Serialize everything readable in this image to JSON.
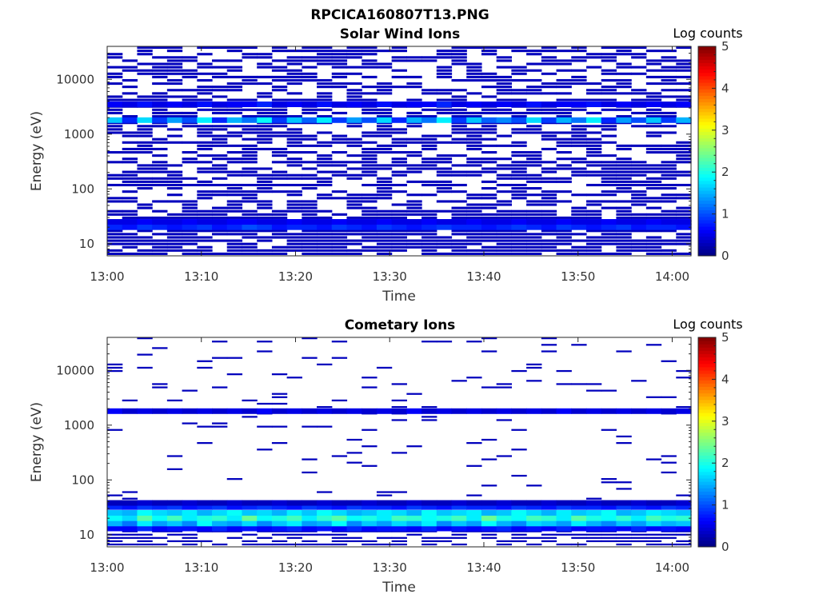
{
  "figure_title": "RPCICA160807T13.PNG",
  "chart_data": [
    {
      "type": "heatmap",
      "title": "Solar Wind Ions",
      "xlabel": "Time",
      "ylabel": "Energy (eV)",
      "x_ticks": [
        "13:00",
        "13:10",
        "13:20",
        "13:30",
        "13:40",
        "13:50",
        "14:00"
      ],
      "y_ticks": [
        "10",
        "100",
        "1000",
        "10000"
      ],
      "y_scale": "log",
      "xlim": [
        "13:00",
        "14:02"
      ],
      "ylim": [
        6,
        40000
      ],
      "colorbar": {
        "label": "Log counts",
        "ticks": [
          "0",
          "1",
          "2",
          "3",
          "4",
          "5"
        ],
        "range": [
          0,
          5
        ],
        "colormap": "jet"
      },
      "bands": [
        {
          "energy_eV": 1800,
          "log_counts": [
            1.6,
            0.8,
            1.7,
            0.9,
            1.4,
            1.0,
            1.8,
            0.8,
            1.5,
            1.2,
            1.9,
            0.9,
            1.6,
            1.1,
            1.8,
            0.9,
            1.4,
            1.0,
            1.7,
            0.8,
            1.5,
            1.2,
            1.8,
            0.9,
            1.6,
            1.1,
            1.3,
            1.0,
            1.7,
            0.9,
            1.5,
            1.2,
            1.8,
            0.8,
            1.4,
            1.0,
            1.6,
            0.9,
            1.5
          ]
        },
        {
          "energy_eV": 3500,
          "log_counts": [
            0.6,
            0.5,
            0.7,
            0.5,
            0.6,
            0.5,
            0.7,
            0.5,
            0.6,
            0.6,
            0.8,
            0.5,
            0.6,
            0.5,
            0.7,
            0.5,
            0.6,
            0.5,
            0.7,
            0.5,
            0.6,
            0.6,
            0.8,
            0.5,
            0.6,
            0.5,
            0.6,
            0.5,
            0.7,
            0.5,
            0.6,
            0.6,
            0.7,
            0.5,
            0.6,
            0.5,
            0.6,
            0.5,
            0.6
          ]
        },
        {
          "energy_eV": 20,
          "log_counts": [
            0.8,
            0.7,
            0.9,
            0.8,
            0.7,
            0.8,
            0.9,
            0.7,
            0.8,
            1.0,
            0.9,
            0.7,
            0.8,
            0.8,
            0.7,
            0.9,
            0.8,
            0.7,
            0.9,
            0.8,
            0.7,
            0.8,
            0.9,
            0.8,
            0.8,
            0.7,
            0.8,
            0.9,
            0.8,
            0.7,
            0.9,
            0.8,
            0.7,
            0.8,
            0.9,
            0.7,
            0.8,
            0.8,
            0.7
          ]
        },
        {
          "energy_eV": 25,
          "log_counts": [
            0.5,
            0.5,
            0.6,
            0.5,
            0.5,
            0.6,
            0.5,
            0.5,
            0.6,
            0.6,
            0.5,
            0.5,
            0.6,
            0.5,
            0.5,
            0.6,
            0.5,
            0.5,
            0.6,
            0.5,
            0.5,
            0.6,
            0.5,
            0.5,
            0.6,
            0.5,
            0.5,
            0.6,
            0.5,
            0.5,
            0.6,
            0.5,
            0.5,
            0.6,
            0.5,
            0.5,
            0.6,
            0.5,
            0.5
          ]
        }
      ],
      "background": {
        "energy_range_eV": [
          6,
          40000
        ],
        "log_counts": 0.3,
        "coverage": 0.55,
        "coverage_low_energy": 0.8
      }
    },
    {
      "type": "heatmap",
      "title": "Cometary Ions",
      "xlabel": "Time",
      "ylabel": "Energy (eV)",
      "x_ticks": [
        "13:00",
        "13:10",
        "13:20",
        "13:30",
        "13:40",
        "13:50",
        "14:00"
      ],
      "y_ticks": [
        "10",
        "100",
        "1000",
        "10000"
      ],
      "y_scale": "log",
      "xlim": [
        "13:00",
        "14:02"
      ],
      "ylim": [
        6,
        40000
      ],
      "colorbar": {
        "label": "Log counts",
        "ticks": [
          "0",
          "1",
          "2",
          "3",
          "4",
          "5"
        ],
        "range": [
          0,
          5
        ],
        "colormap": "jet"
      },
      "bands": [
        {
          "energy_eV": 1800,
          "log_counts": [
            0.6,
            0.4,
            0.5,
            0.4,
            0.5,
            0.4,
            0.5,
            0.4,
            0.5,
            0.4,
            0.6,
            0.4,
            0.5,
            0.4,
            0.5,
            0.4,
            0.5,
            0.4,
            0.5,
            0.4,
            0.6,
            0.4,
            0.5,
            0.4,
            0.5,
            0.4,
            0.5,
            0.4,
            0.5,
            0.4,
            0.6,
            0.4,
            0.5,
            0.4,
            0.5,
            0.4,
            0.5,
            0.4,
            0.5
          ]
        },
        {
          "energy_eV": 13,
          "log_counts": [
            0.6,
            0.6,
            0.8,
            0.6,
            0.7,
            0.7,
            0.6,
            0.8,
            0.6,
            0.7,
            0.6,
            0.7,
            0.8,
            0.6,
            0.7,
            0.6,
            0.8,
            0.6,
            0.7,
            0.7,
            0.6,
            0.8,
            0.6,
            0.7,
            0.6,
            0.7,
            0.8,
            0.6,
            0.7,
            0.6,
            0.8,
            0.6,
            0.7,
            0.7,
            0.6,
            0.8,
            0.6,
            0.7,
            0.6
          ]
        },
        {
          "energy_eV": 16,
          "log_counts": [
            1.5,
            1.2,
            1.8,
            1.4,
            1.6,
            1.3,
            1.9,
            1.5,
            1.4,
            1.7,
            1.3,
            1.6,
            1.8,
            1.4,
            1.5,
            1.9,
            1.3,
            1.6,
            1.4,
            1.7,
            1.5,
            1.8,
            1.3,
            1.6,
            1.4,
            1.9,
            1.5,
            1.3,
            1.7,
            1.6,
            1.4,
            1.8,
            1.5,
            1.3,
            1.6,
            1.4,
            1.7,
            1.5,
            1.6
          ]
        },
        {
          "energy_eV": 20,
          "log_counts": [
            1.9,
            1.7,
            2.3,
            1.9,
            2.2,
            1.8,
            2.0,
            2.1,
            1.8,
            2.4,
            1.9,
            2.0,
            2.2,
            1.8,
            2.1,
            2.3,
            1.9,
            2.0,
            1.8,
            2.2,
            2.1,
            1.9,
            2.0,
            2.2,
            1.8,
            2.4,
            2.0,
            1.9,
            2.2,
            2.1,
            1.8,
            2.3,
            2.0,
            1.9,
            2.1,
            1.8,
            2.2,
            2.0,
            2.1
          ]
        },
        {
          "energy_eV": 25,
          "log_counts": [
            1.6,
            1.5,
            1.9,
            1.7,
            1.6,
            1.8,
            1.5,
            1.7,
            1.9,
            1.6,
            1.7,
            1.5,
            1.8,
            1.6,
            1.9,
            1.7,
            1.5,
            1.6,
            1.8,
            1.7,
            1.5,
            1.9,
            1.6,
            1.7,
            1.8,
            1.5,
            1.6,
            1.9,
            1.7,
            1.5,
            1.8,
            1.6,
            1.7,
            1.9,
            1.5,
            1.6,
            1.8,
            1.7,
            1.6
          ]
        },
        {
          "energy_eV": 32,
          "log_counts": [
            0.8,
            0.7,
            0.9,
            0.8,
            0.9,
            0.7,
            0.8,
            0.9,
            0.7,
            0.8,
            0.9,
            0.8,
            0.7,
            0.9,
            0.8,
            0.7,
            0.9,
            0.8,
            0.8,
            0.7,
            0.9,
            0.8,
            0.7,
            0.9,
            0.8,
            0.8,
            0.7,
            0.9,
            0.8,
            0.7,
            0.9,
            0.8,
            0.8,
            0.7,
            0.9,
            0.8,
            0.7,
            0.9,
            0.8
          ]
        },
        {
          "energy_eV": 38,
          "log_counts": [
            0.3,
            0.3,
            0.4,
            0.3,
            0.3,
            0.4,
            0.3,
            0.3,
            0.4,
            0.3,
            0.3,
            0.4,
            0.3,
            0.3,
            0.4,
            0.3,
            0.3,
            0.4,
            0.3,
            0.3,
            0.4,
            0.3,
            0.3,
            0.4,
            0.3,
            0.3,
            0.4,
            0.3,
            0.3,
            0.4,
            0.3,
            0.3,
            0.4,
            0.3,
            0.3,
            0.4,
            0.3,
            0.3,
            0.4
          ]
        }
      ],
      "background": {
        "energy_range_eV": [
          6,
          40000
        ],
        "log_counts": 0.3,
        "coverage": 0.06,
        "coverage_low_energy": 0.7
      }
    }
  ]
}
